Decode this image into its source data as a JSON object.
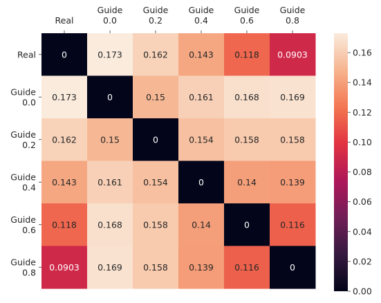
{
  "chart_data": {
    "type": "heatmap",
    "title": "",
    "xlabel": "",
    "ylabel": "",
    "x_categories": [
      [
        "Real"
      ],
      [
        "Guide",
        "0.0"
      ],
      [
        "Guide",
        "0.2"
      ],
      [
        "Guide",
        "0.4"
      ],
      [
        "Guide",
        "0.6"
      ],
      [
        "Guide",
        "0.8"
      ]
    ],
    "y_categories": [
      [
        "Real"
      ],
      [
        "Guide",
        "0.0"
      ],
      [
        "Guide",
        "0.2"
      ],
      [
        "Guide",
        "0.4"
      ],
      [
        "Guide",
        "0.6"
      ],
      [
        "Guide",
        "0.8"
      ]
    ],
    "values": [
      [
        0,
        0.173,
        0.162,
        0.143,
        0.118,
        0.0903
      ],
      [
        0.173,
        0,
        0.15,
        0.161,
        0.168,
        0.169
      ],
      [
        0.162,
        0.15,
        0,
        0.154,
        0.158,
        0.158
      ],
      [
        0.143,
        0.161,
        0.154,
        0,
        0.14,
        0.139
      ],
      [
        0.118,
        0.168,
        0.158,
        0.14,
        0,
        0.116
      ],
      [
        0.0903,
        0.169,
        0.158,
        0.139,
        0.116,
        0
      ]
    ],
    "cell_labels": [
      [
        "0",
        "0.173",
        "0.162",
        "0.143",
        "0.118",
        "0.0903"
      ],
      [
        "0.173",
        "0",
        "0.15",
        "0.161",
        "0.168",
        "0.169"
      ],
      [
        "0.162",
        "0.15",
        "0",
        "0.154",
        "0.158",
        "0.158"
      ],
      [
        "0.143",
        "0.161",
        "0.154",
        "0",
        "0.14",
        "0.139"
      ],
      [
        "0.118",
        "0.168",
        "0.158",
        "0.14",
        "0",
        "0.116"
      ],
      [
        "0.0903",
        "0.169",
        "0.158",
        "0.139",
        "0.116",
        "0"
      ]
    ],
    "color_scale": {
      "name": "rocket",
      "min": 0,
      "max": 0.173,
      "ticks": [
        0.0,
        0.02,
        0.04,
        0.06,
        0.08,
        0.1,
        0.12,
        0.14,
        0.16
      ],
      "tick_labels": [
        "0.00",
        "0.02",
        "0.04",
        "0.06",
        "0.08",
        "0.10",
        "0.12",
        "0.14",
        "0.16"
      ],
      "stops": [
        "#03051a",
        "#35193e",
        "#701f57",
        "#ae1759",
        "#e13342",
        "#f37651",
        "#f6b48f",
        "#faebdd"
      ]
    },
    "x_axis_position": "top",
    "grid": false,
    "colorbar_position": "right"
  }
}
